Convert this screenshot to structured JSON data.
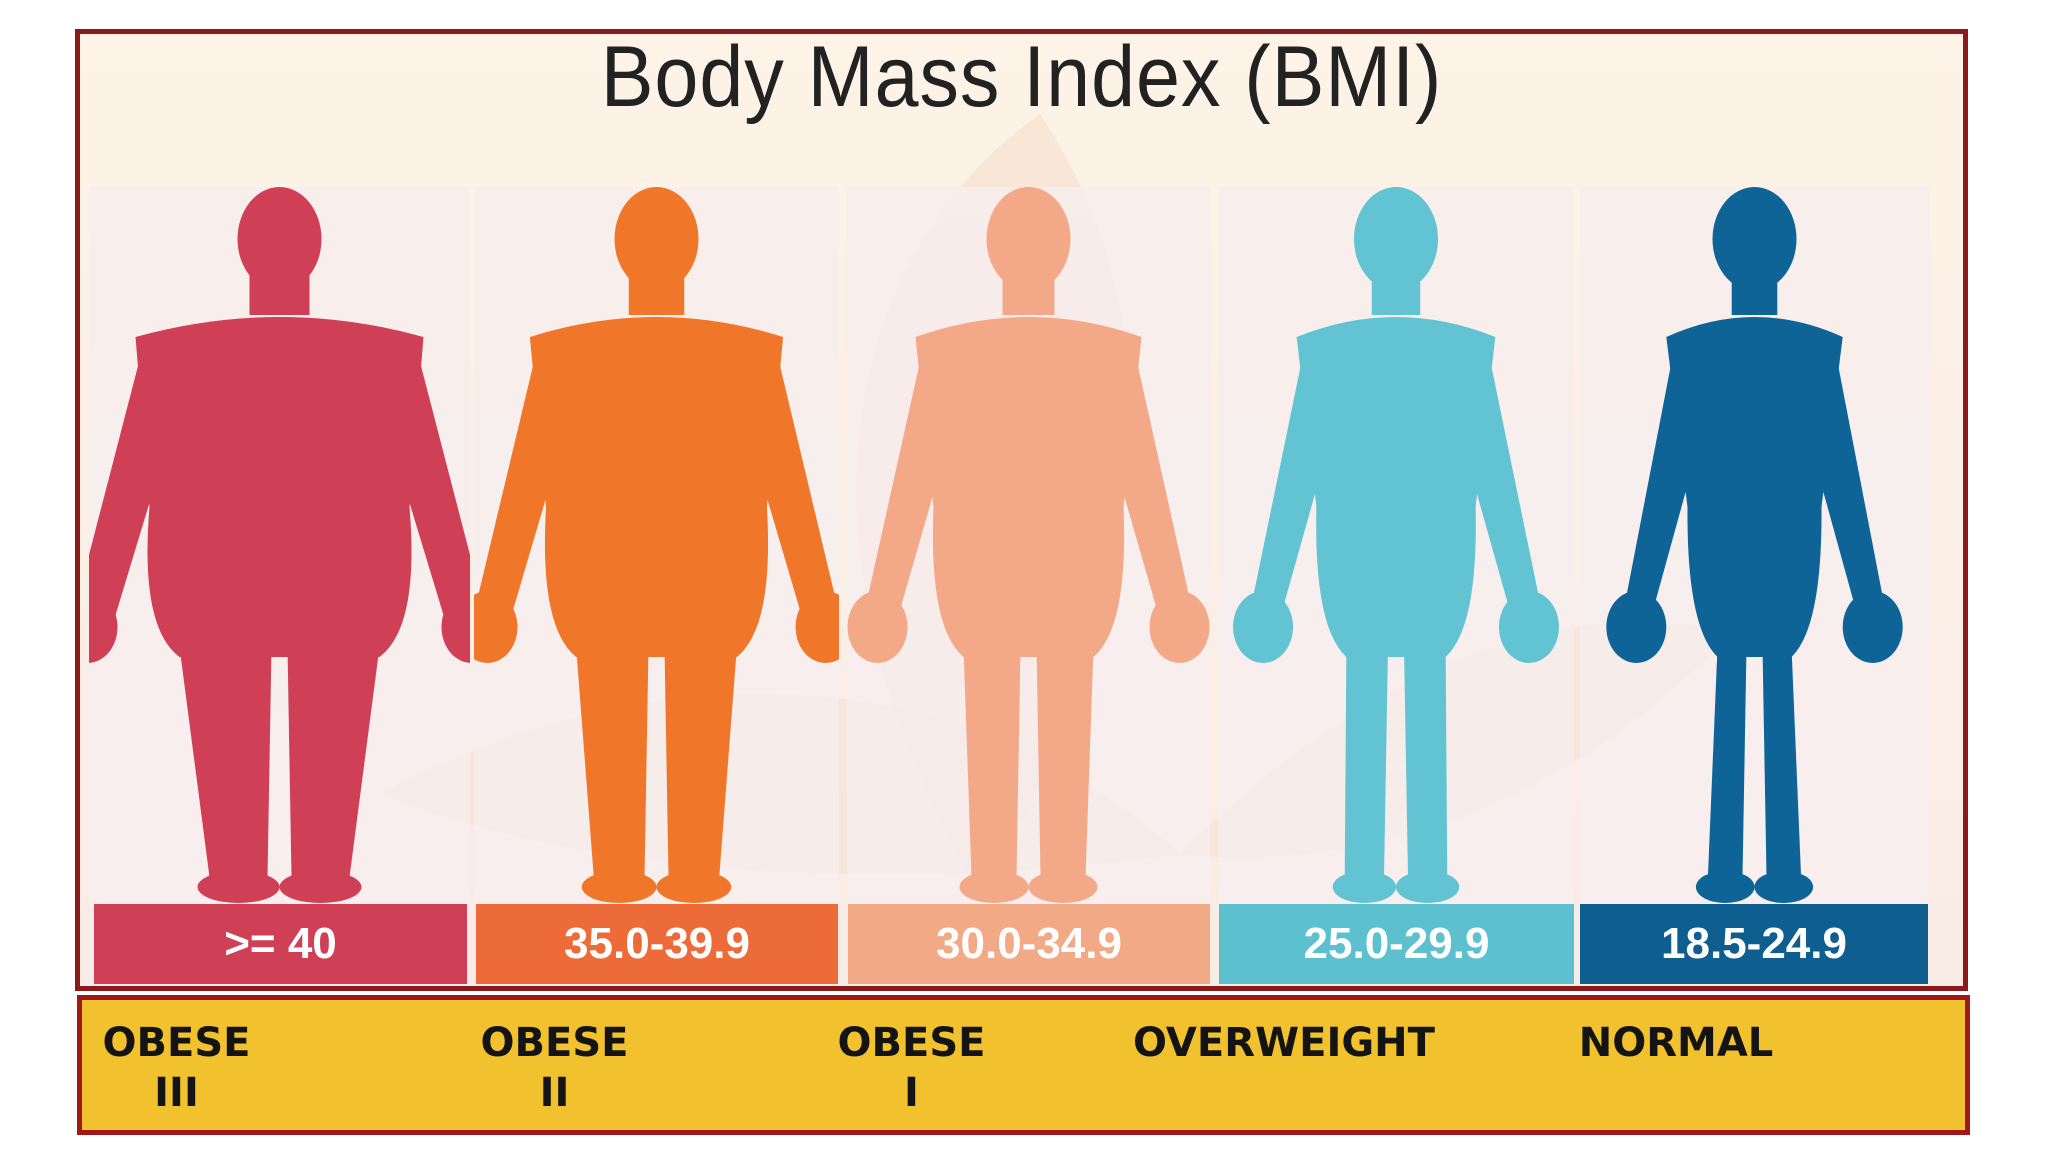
{
  "title": "Body Mass Index (BMI)",
  "categories": [
    {
      "range": ">= 40",
      "label_line1": "OBESE",
      "label_line2": "III",
      "color": "#cf3f55",
      "bar_color": "#cf3f55",
      "build": 1.0
    },
    {
      "range": "35.0-39.9",
      "label_line1": "OBESE",
      "label_line2": "II",
      "color": "#f0772a",
      "bar_color": "#ec6b39",
      "build": 0.72
    },
    {
      "range": "30.0-34.9",
      "label_line1": "OBESE",
      "label_line2": "I",
      "color": "#f3a888",
      "bar_color": "#f2a985",
      "build": 0.5
    },
    {
      "range": "25.0-29.9",
      "label_line1": "OVERWEIGHT",
      "label_line2": "",
      "color": "#62c3d2",
      "bar_color": "#5dc0cf",
      "build": 0.28
    },
    {
      "range": "18.5-24.9",
      "label_line1": "NORMAL",
      "label_line2": "",
      "color": "#0e6497",
      "bar_color": "#0e5e8f",
      "build": 0.1
    }
  ]
}
